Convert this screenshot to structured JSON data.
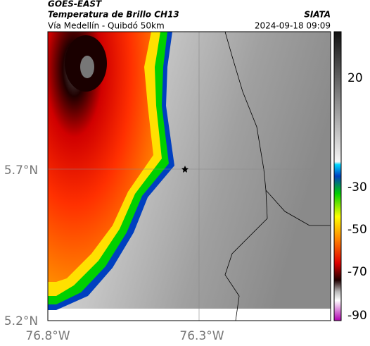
{
  "header": {
    "title": "GOES-EAST",
    "subtitle": "Temperatura de Brillo CH13",
    "location": "Vía Medellín - Quibdó 50km",
    "source": "SIATA",
    "datetime": "2024-09-18 09:09"
  },
  "map": {
    "lat_labels": [
      "5.7°N",
      "5.2°N"
    ],
    "lon_labels": [
      "76.8°W",
      "76.3°W"
    ]
  },
  "colorbar": {
    "ticks": [
      20,
      -30,
      -50,
      -70,
      -90
    ]
  }
}
